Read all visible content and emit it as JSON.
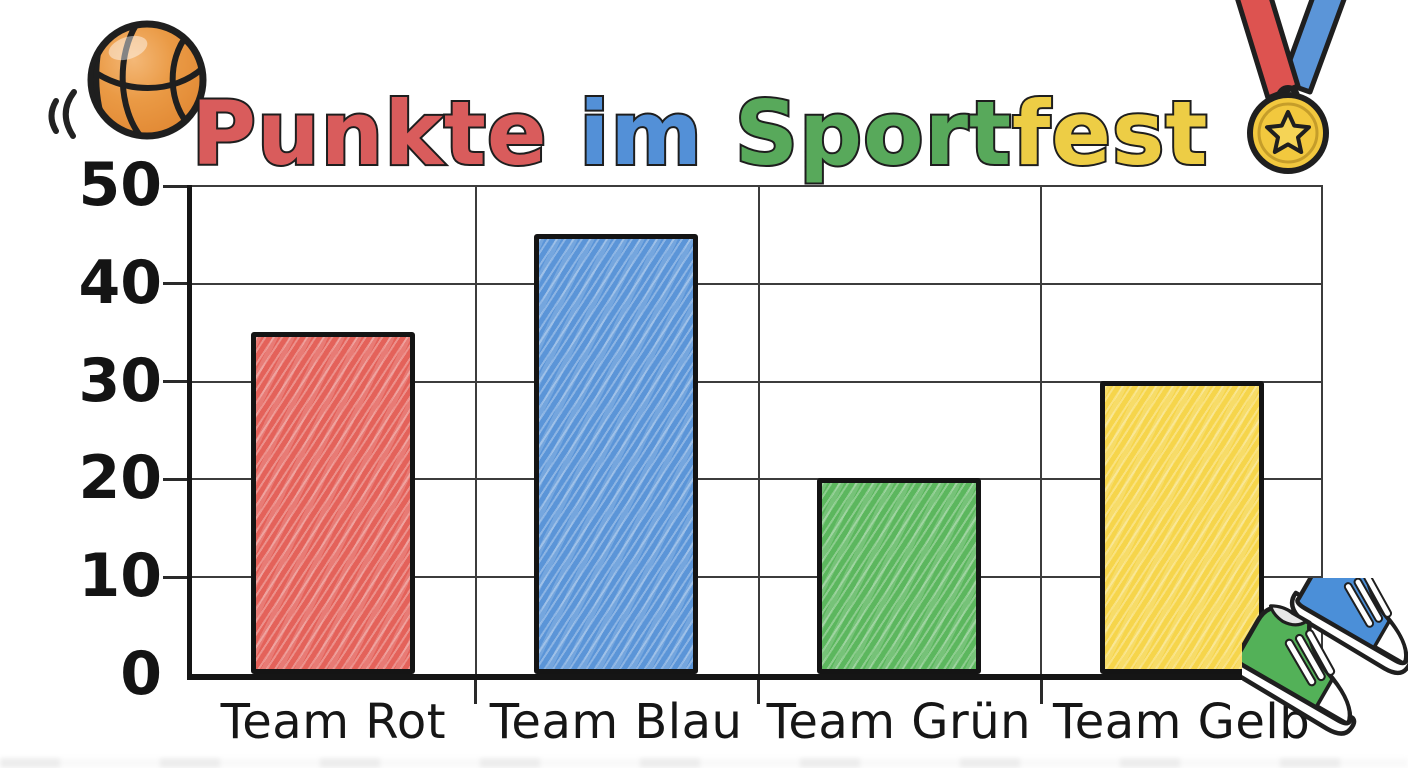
{
  "title": {
    "full": "Punkte im Sportfest",
    "words": [
      {
        "text": "Punkte ",
        "color": "#d95c5c"
      },
      {
        "text": "im ",
        "color": "#5390d7"
      },
      {
        "text": "Sport",
        "color": "#58a95b"
      },
      {
        "text": "fest",
        "color": "#edcd45"
      }
    ]
  },
  "chart_data": {
    "type": "bar",
    "title": "Punkte im Sportfest",
    "categories": [
      "Team Rot",
      "Team Blau",
      "Team Grün",
      "Team Gelb"
    ],
    "values": [
      35,
      45,
      20,
      30
    ],
    "bar_colors": [
      "#e4625a",
      "#5b95d8",
      "#5cb75e",
      "#f6d54b"
    ],
    "xlabel": "",
    "ylabel": "",
    "ylim": [
      0,
      50
    ],
    "yticks": [
      0,
      10,
      20,
      30,
      40,
      50
    ],
    "grid": true,
    "legend": false
  },
  "icons": {
    "basketball": "basketball-icon",
    "medal": "medal-icon",
    "sneakers": "sneakers-icon"
  },
  "style": {
    "outline_color": "#1c1c1c",
    "grid_color": "#3c3c3c",
    "background": "#ffffff",
    "basketball_orange": "#e9953f",
    "medal_gold": "#f2c83e",
    "medal_star": "#f5d456",
    "ribbon_red": "#dd5350",
    "ribbon_blue": "#5b95d8",
    "sneaker_green": "#53b158",
    "sneaker_blue": "#4b8fd8"
  }
}
